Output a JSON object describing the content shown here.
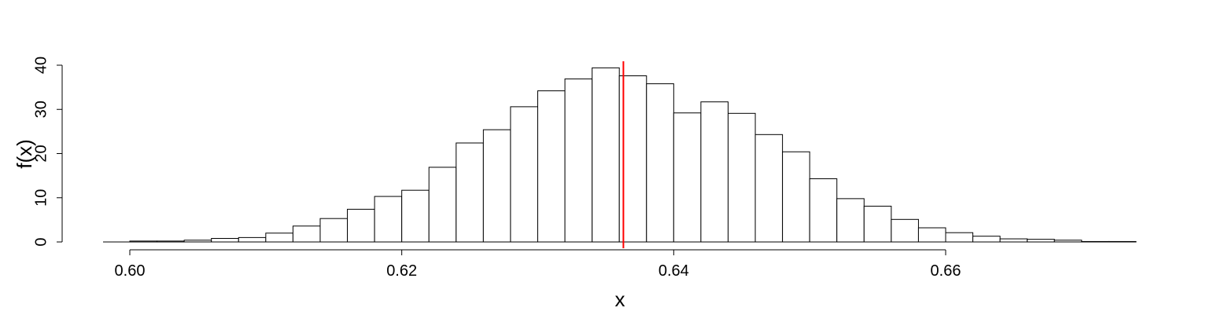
{
  "chart_data": {
    "type": "bar",
    "subtype": "histogram",
    "title": "",
    "xlabel": "x",
    "ylabel": "f(x)",
    "xlim": [
      0.598,
      0.674
    ],
    "ylim": [
      0,
      40
    ],
    "x_ticks": [
      0.6,
      0.62,
      0.64,
      0.66
    ],
    "x_tick_labels": [
      "0.60",
      "0.62",
      "0.64",
      "0.66"
    ],
    "y_ticks": [
      0,
      10,
      20,
      30,
      40
    ],
    "y_tick_labels": [
      "0",
      "10",
      "20",
      "30",
      "40"
    ],
    "bin_start": 0.6,
    "bin_width": 0.002,
    "values": [
      0.2,
      0.2,
      0.4,
      0.8,
      1.0,
      2.0,
      3.6,
      5.3,
      7.4,
      10.3,
      11.7,
      16.9,
      22.4,
      25.4,
      30.6,
      34.2,
      36.9,
      39.4,
      37.6,
      35.8,
      29.2,
      31.7,
      29.1,
      24.3,
      20.4,
      14.3,
      9.8,
      8.1,
      5.1,
      3.2,
      2.1,
      1.3,
      0.7,
      0.6,
      0.4,
      0.1,
      0.1
    ],
    "vline": {
      "x": 0.6363,
      "color": "#ff0000"
    },
    "bar_fill": "#ffffff",
    "bar_stroke": "#000000",
    "grid": false,
    "legend": "none"
  }
}
